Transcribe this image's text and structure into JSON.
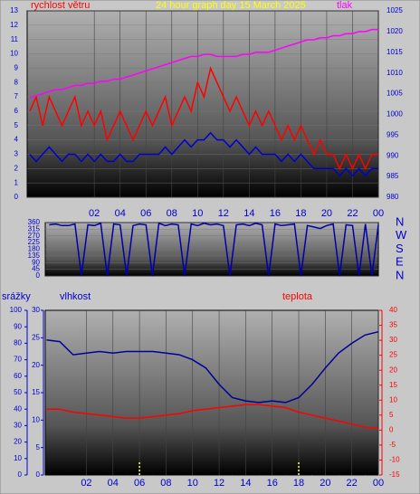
{
  "chart_data": [
    {
      "type": "line",
      "title": "24 hour graph day   15 March 2025",
      "y_label": "rychlost větru",
      "y2_label": "tlak",
      "x": [
        -3,
        -2.5,
        -2,
        -1.5,
        -1,
        -0.5,
        0,
        0.5,
        1,
        1.5,
        2,
        2.5,
        3,
        3.5,
        4,
        4.5,
        5,
        5.5,
        6,
        6.5,
        7,
        7.5,
        8,
        8.5,
        9,
        9.5,
        10,
        10.5,
        11,
        11.5,
        12,
        12.5,
        13,
        13.5,
        14,
        14.5,
        15,
        15.5,
        16,
        16.5,
        17,
        17.5,
        18,
        18.5,
        19,
        19.5,
        20,
        20.5,
        21,
        21.5,
        22,
        22.5,
        23,
        23.5,
        24
      ],
      "xlim": [
        -3.2,
        24
      ],
      "xticks": [
        {
          "value": 2,
          "label": "02"
        },
        {
          "value": 4,
          "label": "04"
        },
        {
          "value": 6,
          "label": "06"
        },
        {
          "value": 8,
          "label": "08"
        },
        10,
        12,
        14,
        16,
        18,
        20,
        22,
        {
          "value": 24,
          "label": "00"
        }
      ],
      "ylim": [
        0,
        13
      ],
      "yticks": [
        0,
        1,
        2,
        3,
        4,
        5,
        6,
        7,
        8,
        9,
        10,
        11,
        12,
        13
      ],
      "y2lim": [
        980,
        1025
      ],
      "y2ticks": [
        980,
        985,
        990,
        995,
        1000,
        1005,
        1010,
        1015,
        1020,
        1025
      ],
      "grid": true,
      "series": [
        {
          "color": "#ff0000",
          "values": [
            6,
            7,
            5,
            7,
            6,
            5,
            6,
            7,
            5,
            6,
            5,
            6,
            4,
            5,
            6,
            5,
            4,
            5,
            6,
            5,
            6,
            7,
            5,
            6,
            7,
            6,
            8,
            7,
            9,
            8,
            7,
            6,
            7,
            6,
            5,
            6,
            5,
            6,
            5,
            4,
            5,
            4,
            5,
            4,
            3,
            4,
            3,
            3,
            2,
            3,
            2,
            3,
            2,
            3,
            3
          ]
        },
        {
          "color": "#0000cc",
          "values": [
            3,
            2.5,
            3,
            3.5,
            3,
            2.5,
            3,
            3,
            2.5,
            3,
            2.5,
            3,
            2.5,
            2.5,
            3,
            2.5,
            2.5,
            3,
            3,
            3,
            3,
            3.5,
            3,
            3.5,
            4,
            3.5,
            4,
            4,
            4.5,
            4,
            4,
            3.5,
            4,
            3.5,
            3,
            3.5,
            3,
            3,
            3,
            2.5,
            3,
            2.5,
            3,
            2.5,
            2,
            2,
            2,
            2,
            1.5,
            2,
            1.5,
            2,
            1.5,
            2,
            2
          ]
        },
        {
          "color": "#ff00ff",
          "axis": "y2",
          "values": [
            1004,
            1004.5,
            1005,
            1005.5,
            1006,
            1006,
            1006.5,
            1007,
            1007,
            1007.5,
            1007.5,
            1008,
            1008,
            1008.5,
            1008.5,
            1009,
            1009.5,
            1010,
            1010.5,
            1011,
            1011.5,
            1012,
            1012.5,
            1013,
            1013.5,
            1014,
            1014,
            1014.5,
            1014.5,
            1014,
            1014,
            1014,
            1014,
            1014.5,
            1014.5,
            1015,
            1015,
            1015,
            1015.5,
            1016,
            1016.5,
            1017,
            1017.5,
            1018,
            1018,
            1018.5,
            1018.5,
            1019,
            1019,
            1019.5,
            1019.5,
            1020,
            1020,
            1020.5,
            1020.5
          ]
        }
      ]
    },
    {
      "type": "line",
      "x": [
        -1.5,
        -1,
        -0.5,
        0,
        0.5,
        1,
        1.5,
        2,
        2.5,
        3,
        3.5,
        4,
        4.5,
        5,
        5.5,
        6,
        6.5,
        7,
        7.5,
        8,
        8.5,
        9,
        9.5,
        10,
        10.5,
        11,
        11.5,
        12,
        12.5,
        13,
        13.5,
        14,
        14.5,
        15,
        15.5,
        16,
        16.5,
        17,
        17.5,
        18,
        18.5,
        19,
        19.5,
        20,
        20.5,
        21,
        21.5,
        22,
        22.5,
        23,
        23.5,
        24
      ],
      "xlim": [
        -1.8,
        24
      ],
      "ylim": [
        0,
        360
      ],
      "yticks": [
        0,
        45,
        90,
        135,
        180,
        225,
        270,
        315,
        360
      ],
      "y2ticks": [
        {
          "value": 360,
          "label": "N"
        },
        {
          "value": 270,
          "label": "W"
        },
        {
          "value": 180,
          "label": "S"
        },
        {
          "value": 90,
          "label": "E"
        },
        {
          "value": 0,
          "label": "N"
        }
      ],
      "grid": true,
      "series": [
        {
          "color": "#0000aa",
          "values": [
            345,
            350,
            340,
            340,
            350,
            0,
            345,
            340,
            355,
            0,
            350,
            345,
            0,
            340,
            350,
            345,
            0,
            355,
            340,
            350,
            345,
            0,
            350,
            340,
            355,
            345,
            350,
            340,
            0,
            345,
            350,
            340,
            355,
            345,
            0,
            350,
            340,
            345,
            350,
            0,
            340,
            330,
            320,
            340,
            350,
            0,
            345,
            340,
            0,
            350,
            0,
            345
          ]
        }
      ]
    },
    {
      "type": "line",
      "x": [
        -1,
        0,
        1,
        2,
        3,
        4,
        5,
        6,
        7,
        8,
        9,
        10,
        11,
        12,
        13,
        14,
        15,
        16,
        17,
        18,
        19,
        20,
        21,
        22,
        23,
        24
      ],
      "xlim": [
        -1.1,
        24
      ],
      "xticks": [
        {
          "value": 2,
          "label": "02"
        },
        {
          "value": 4,
          "label": "04"
        },
        {
          "value": 6,
          "label": "06"
        },
        {
          "value": 8,
          "label": "08"
        },
        10,
        12,
        14,
        16,
        18,
        20,
        22,
        {
          "value": 24,
          "label": "00"
        }
      ],
      "ylim": [
        0,
        100
      ],
      "yticks": [
        0,
        10,
        20,
        30,
        40,
        50,
        60,
        70,
        80,
        90,
        100
      ],
      "y3lim": [
        0,
        30
      ],
      "y3ticks": [
        0,
        5,
        10,
        15,
        20,
        25,
        30
      ],
      "y2lim": [
        -15,
        40
      ],
      "y2ticks": [
        -15,
        -10,
        -5,
        0,
        5,
        10,
        15,
        20,
        25,
        30,
        35,
        40
      ],
      "grid": true,
      "series": [
        {
          "name": "srážky",
          "color": "#ffff66",
          "axis": "y3",
          "type": "bar",
          "values": [
            0,
            0,
            0,
            0,
            0,
            0,
            0,
            2.5,
            0,
            0,
            0,
            0,
            0,
            0,
            0,
            0,
            0,
            0,
            0,
            2.5,
            0,
            0,
            0,
            0,
            0,
            0
          ]
        },
        {
          "name": "vlhkost",
          "color": "#000099",
          "values": [
            82,
            81,
            73,
            74,
            75,
            74,
            75,
            75,
            75,
            74,
            73,
            70,
            65,
            55,
            47,
            45,
            44,
            45,
            44,
            47,
            55,
            65,
            74,
            80,
            85,
            87
          ]
        },
        {
          "name": "teplota",
          "color": "#ff0000",
          "axis": "y2",
          "values": [
            7,
            7,
            6,
            5.5,
            5,
            4.5,
            4,
            4,
            4.5,
            5,
            5.5,
            6.5,
            7,
            7.5,
            8,
            8.5,
            8.5,
            8,
            7.5,
            6,
            5,
            4,
            3,
            2,
            1,
            0.5
          ]
        }
      ]
    }
  ]
}
